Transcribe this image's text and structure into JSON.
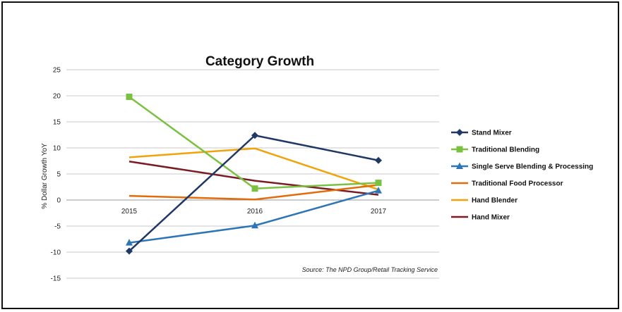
{
  "chart_data": {
    "type": "line",
    "title": "Category Growth",
    "ylabel": "% Dollar Growth YoY",
    "xlabel": "",
    "categories": [
      "2015",
      "2016",
      "2017"
    ],
    "ylim": [
      -15,
      25
    ],
    "yticks": [
      25,
      20,
      15,
      10,
      5,
      0,
      -5,
      -10,
      -15
    ],
    "grid": true,
    "legend_position": "right",
    "annotation": "Source: The NPD Group/Retail Tracking Service",
    "series": [
      {
        "name": "Stand Mixer",
        "values": [
          -9.8,
          12.4,
          7.6
        ],
        "color": "#1f3864",
        "marker": "diamond"
      },
      {
        "name": "Traditional Blending",
        "values": [
          19.8,
          2.2,
          3.3
        ],
        "color": "#7ac143",
        "marker": "square"
      },
      {
        "name": "Single Serve Blending & Processing",
        "values": [
          -8.2,
          -4.9,
          1.8
        ],
        "color": "#2e75b6",
        "marker": "triangle"
      },
      {
        "name": "Traditional Food Processor",
        "values": [
          0.8,
          0.1,
          2.9
        ],
        "color": "#e36c0a",
        "marker": "none"
      },
      {
        "name": "Hand Blender",
        "values": [
          8.2,
          9.9,
          2.0
        ],
        "color": "#f0a30a",
        "marker": "none"
      },
      {
        "name": "Hand Mixer",
        "values": [
          7.4,
          3.7,
          1.0
        ],
        "color": "#7b1c24",
        "marker": "none"
      }
    ]
  }
}
